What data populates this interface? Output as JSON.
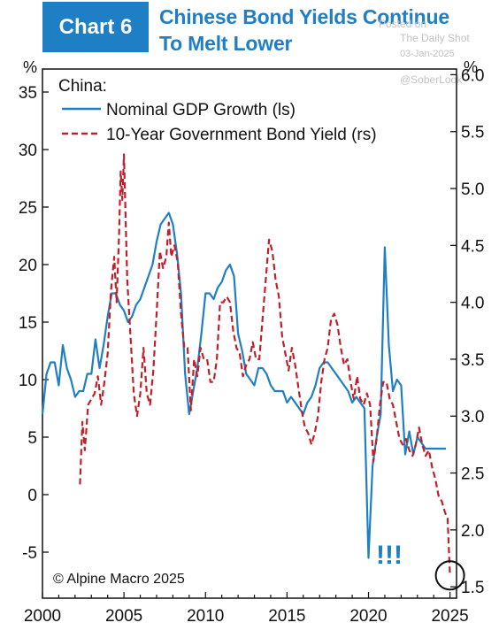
{
  "header": {
    "badge": "Chart 6",
    "title_line1": "Chinese Bond Yields Continue",
    "title_line2": "To Melt Lower"
  },
  "watermark": {
    "posted_on": "Posted on",
    "source": "The Daily Shot",
    "date": "03-Jan-2025",
    "handle": "@SoberLook"
  },
  "chart_data": {
    "type": "line",
    "legend_title": "China:",
    "left_unit": "%",
    "right_unit": "%",
    "xlim": [
      2000,
      2025.4
    ],
    "x_ticks": [
      "2000",
      "2005",
      "2010",
      "2015",
      "2020",
      "2025"
    ],
    "left_axis": {
      "ylim": [
        -9,
        37
      ],
      "ticks": [
        "35",
        "30",
        "25",
        "20",
        "15",
        "10",
        "5",
        "0",
        "-5"
      ]
    },
    "right_axis": {
      "ylim": [
        1.4,
        6.05
      ],
      "ticks": [
        "6.0",
        "5.5",
        "5.0",
        "4.5",
        "4.0",
        "3.5",
        "3.0",
        "2.5",
        "2.0",
        "1.5"
      ]
    },
    "annotation": "!!!",
    "copyright": "© Alpine Macro 2025",
    "colors": {
      "gdp": "#1f7fc4",
      "yield": "#c0202a",
      "badge": "#1f7fc4",
      "annotation": "#1f7fc4"
    },
    "series": [
      {
        "name": "Nominal GDP Growth (ls)",
        "axis": "left",
        "style": "solid",
        "x": [
          2000.0,
          2000.25,
          2000.5,
          2000.75,
          2001.0,
          2001.25,
          2001.5,
          2001.75,
          2002.0,
          2002.25,
          2002.5,
          2002.75,
          2003.0,
          2003.25,
          2003.5,
          2003.75,
          2004.0,
          2004.25,
          2004.5,
          2004.75,
          2005.0,
          2005.25,
          2005.5,
          2005.75,
          2006.0,
          2006.25,
          2006.5,
          2006.75,
          2007.0,
          2007.25,
          2007.5,
          2007.75,
          2008.0,
          2008.25,
          2008.5,
          2008.75,
          2009.0,
          2009.25,
          2009.5,
          2009.75,
          2010.0,
          2010.25,
          2010.5,
          2010.75,
          2011.0,
          2011.25,
          2011.5,
          2011.75,
          2012.0,
          2012.25,
          2012.5,
          2012.75,
          2013.0,
          2013.25,
          2013.5,
          2013.75,
          2014.0,
          2014.25,
          2014.5,
          2014.75,
          2015.0,
          2015.25,
          2015.5,
          2015.75,
          2016.0,
          2016.25,
          2016.5,
          2016.75,
          2017.0,
          2017.25,
          2017.5,
          2017.75,
          2018.0,
          2018.25,
          2018.5,
          2018.75,
          2019.0,
          2019.25,
          2019.5,
          2019.75,
          2020.0,
          2020.25,
          2020.5,
          2020.75,
          2021.0,
          2021.25,
          2021.5,
          2021.75,
          2022.0,
          2022.25,
          2022.5,
          2022.75,
          2023.0,
          2023.25,
          2023.5,
          2023.75,
          2024.0,
          2024.25,
          2024.5,
          2024.75
        ],
        "values": [
          7.0,
          10.5,
          11.5,
          11.5,
          9.5,
          13.0,
          11.0,
          10.0,
          8.5,
          9.0,
          9.0,
          10.5,
          10.5,
          13.5,
          11.0,
          13.0,
          15.5,
          17.5,
          17.5,
          16.5,
          16.0,
          15.0,
          15.5,
          16.5,
          17.0,
          18.0,
          19.0,
          20.0,
          22.0,
          23.5,
          24.0,
          24.5,
          23.5,
          21.0,
          17.5,
          10.5,
          7.0,
          9.0,
          11.0,
          14.0,
          17.5,
          17.5,
          17.0,
          18.0,
          18.5,
          19.5,
          20.0,
          19.0,
          14.0,
          12.5,
          10.5,
          10.0,
          9.5,
          11.0,
          11.0,
          10.5,
          9.5,
          9.0,
          9.0,
          9.0,
          8.0,
          8.5,
          8.0,
          7.5,
          7.0,
          8.0,
          8.5,
          9.5,
          11.0,
          11.5,
          11.5,
          11.0,
          10.5,
          10.0,
          9.5,
          9.0,
          8.0,
          8.5,
          8.0,
          7.5,
          -5.5,
          2.5,
          5.0,
          7.0,
          21.5,
          13.0,
          9.0,
          10.0,
          9.5,
          3.5,
          5.5,
          3.5,
          5.0,
          4.5,
          4.0,
          4.0,
          4.0,
          4.0,
          4.0,
          4.0
        ]
      },
      {
        "name": "10-Year Government Bond Yield (rs)",
        "axis": "right",
        "style": "dashed",
        "x": [
          2002.3,
          2002.45,
          2002.6,
          2002.8,
          2003.0,
          2003.2,
          2003.4,
          2003.6,
          2003.8,
          2004.0,
          2004.2,
          2004.4,
          2004.55,
          2004.7,
          2004.8,
          2004.9,
          2005.0,
          2005.2,
          2005.4,
          2005.6,
          2005.8,
          2006.0,
          2006.2,
          2006.4,
          2006.6,
          2006.8,
          2007.0,
          2007.2,
          2007.4,
          2007.6,
          2007.75,
          2007.9,
          2008.1,
          2008.3,
          2008.5,
          2008.7,
          2008.9,
          2009.1,
          2009.3,
          2009.5,
          2009.7,
          2009.9,
          2010.1,
          2010.3,
          2010.5,
          2010.7,
          2010.9,
          2011.1,
          2011.3,
          2011.5,
          2011.7,
          2011.9,
          2012.1,
          2012.3,
          2012.5,
          2012.7,
          2012.9,
          2013.1,
          2013.3,
          2013.5,
          2013.7,
          2013.9,
          2014.1,
          2014.3,
          2014.5,
          2014.7,
          2014.9,
          2015.1,
          2015.3,
          2015.5,
          2015.7,
          2015.9,
          2016.1,
          2016.3,
          2016.5,
          2016.7,
          2016.9,
          2017.1,
          2017.3,
          2017.5,
          2017.7,
          2017.9,
          2018.1,
          2018.3,
          2018.5,
          2018.7,
          2018.9,
          2019.1,
          2019.3,
          2019.5,
          2019.7,
          2019.9,
          2020.1,
          2020.3,
          2020.5,
          2020.7,
          2020.9,
          2021.1,
          2021.3,
          2021.5,
          2021.7,
          2021.9,
          2022.1,
          2022.3,
          2022.5,
          2022.7,
          2022.9,
          2023.1,
          2023.3,
          2023.5,
          2023.7,
          2023.9,
          2024.1,
          2024.3,
          2024.5,
          2024.7,
          2024.85,
          2025.0
        ],
        "values": [
          2.4,
          2.95,
          2.7,
          3.1,
          3.15,
          3.2,
          3.35,
          3.1,
          3.3,
          3.55,
          4.1,
          4.4,
          4.0,
          4.6,
          5.15,
          4.9,
          5.3,
          4.2,
          3.7,
          3.2,
          3.0,
          3.2,
          3.6,
          3.2,
          3.1,
          3.4,
          3.9,
          4.45,
          4.3,
          4.4,
          4.7,
          4.4,
          4.5,
          4.35,
          3.9,
          3.6,
          3.6,
          3.05,
          3.5,
          3.35,
          3.6,
          3.5,
          3.5,
          3.3,
          3.3,
          3.5,
          4.0,
          4.0,
          4.05,
          4.0,
          3.75,
          3.6,
          3.55,
          3.35,
          3.45,
          3.5,
          3.65,
          3.5,
          3.5,
          3.85,
          4.2,
          4.55,
          4.45,
          4.2,
          4.05,
          3.7,
          3.55,
          3.4,
          3.6,
          3.45,
          3.25,
          3.05,
          2.9,
          2.85,
          2.75,
          2.85,
          3.0,
          3.3,
          3.5,
          3.6,
          3.85,
          3.9,
          3.8,
          3.6,
          3.45,
          3.5,
          3.3,
          3.15,
          3.35,
          3.15,
          3.1,
          3.2,
          3.1,
          2.6,
          2.8,
          3.1,
          3.3,
          3.3,
          3.15,
          3.1,
          2.95,
          2.8,
          2.75,
          2.8,
          2.7,
          2.65,
          2.75,
          2.9,
          2.75,
          2.65,
          2.7,
          2.55,
          2.45,
          2.3,
          2.25,
          2.15,
          2.1,
          1.6
        ]
      }
    ]
  }
}
